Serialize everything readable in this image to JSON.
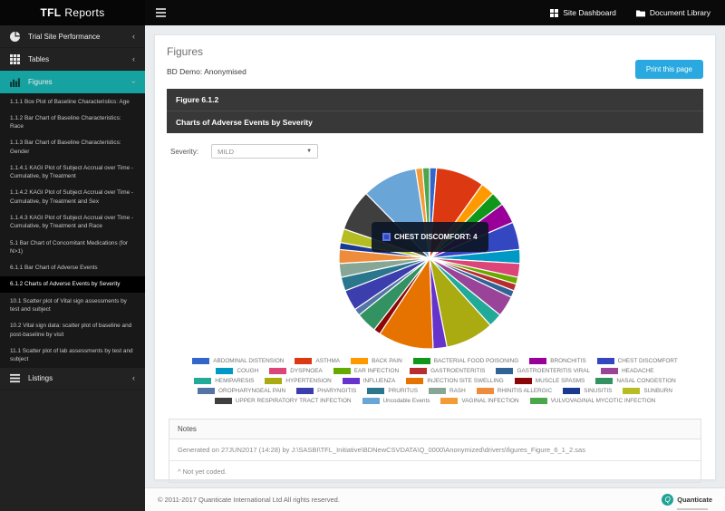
{
  "app": {
    "brand_bold": "TFL",
    "brand_rest": "Reports"
  },
  "topbar": {
    "links": [
      {
        "label": "Site Dashboard",
        "icon": "dashboard-grid-icon"
      },
      {
        "label": "Document Library",
        "icon": "folder-icon"
      }
    ]
  },
  "sidebar": {
    "sections": [
      {
        "label": "Trial Site Performance",
        "icon": "pie-chart-icon",
        "state": "collapsed"
      },
      {
        "label": "Tables",
        "icon": "table-grid-icon",
        "state": "collapsed"
      },
      {
        "label": "Figures",
        "icon": "bar-chart-icon",
        "state": "expanded"
      }
    ],
    "figures_items": [
      {
        "label": "1.1.1 Box Plot of Baseline Characteristics: Age",
        "active": false
      },
      {
        "label": "1.1.2 Bar Chart of Baseline Characteristics: Race",
        "active": false
      },
      {
        "label": "1.1.3 Bar Chart of Baseline Characteristics: Gender",
        "active": false
      },
      {
        "label": "1.1.4.1 KAGI Plot of Subject Accrual over Time - Cumulative, by Treatment",
        "active": false
      },
      {
        "label": "1.1.4.2 KAGI Plot of Subject Accrual over Time - Cumulative, by Treatment and Sex",
        "active": false
      },
      {
        "label": "1.1.4.3 KAGI Plot of Subject Accrual over Time - Cumulative, by Treatment and Race",
        "active": false
      },
      {
        "label": "5.1 Bar Chart of Concomitant Medications (for N>1)",
        "active": false
      },
      {
        "label": "6.1.1 Bar Chart of Adverse Events",
        "active": false
      },
      {
        "label": "6.1.2 Charts of Adverse Events by Severity",
        "active": true
      },
      {
        "label": "10.1 Scatter plot of Vital sign assessments by test and subject",
        "active": false
      },
      {
        "label": "10.2 Vital sign data: scatter plot of baseline and post-baseline by visit",
        "active": false
      },
      {
        "label": "11.1 Scatter plot of lab assessments by test and subject",
        "active": false
      }
    ],
    "listings": {
      "label": "Listings",
      "icon": "list-icon",
      "state": "collapsed"
    }
  },
  "main": {
    "page_title": "Figures",
    "subtitle": "BD Demo: Anonymised",
    "print_button": "Print this page",
    "panel": {
      "title": "Figure 6.1.2",
      "subtitle": "Charts of Adverse Events by Severity"
    },
    "severity": {
      "label": "Severity:",
      "value": "MILD"
    },
    "tooltip": {
      "display": "CHEST DISCOMFORT: 4",
      "color": "#3348c0"
    },
    "notes": {
      "header": "Notes",
      "rows": [
        "Generated on 27JUN2017 (14:28) by J:\\SASBI\\TFL_Initiative\\BDNewCSVDATA\\Q_0000\\Anonymized\\drivers\\figures_Figure_6_1_2.sas",
        "^ Not yet coded."
      ]
    }
  },
  "chart_data": {
    "type": "pie",
    "title": "Charts of Adverse Events by Severity (MILD)",
    "legend_position": "bottom",
    "labeled_value": {
      "name": "CHEST DISCOMFORT",
      "value": 4
    },
    "values_estimated_from_slice_angles": true,
    "series": [
      {
        "name": "ABDOMINAL DISTENSION",
        "value": 1,
        "color": "#3366cc"
      },
      {
        "name": "ASTHMA",
        "value": 7,
        "color": "#dc3912"
      },
      {
        "name": "BACK PAIN",
        "value": 2,
        "color": "#ff9900"
      },
      {
        "name": "BACTERIAL FOOD POISONING",
        "value": 2,
        "color": "#109618"
      },
      {
        "name": "BRONCHITIS",
        "value": 3,
        "color": "#990099"
      },
      {
        "name": "CHEST DISCOMFORT",
        "value": 4,
        "color": "#3348c0"
      },
      {
        "name": "COUGH",
        "value": 2,
        "color": "#0099c6"
      },
      {
        "name": "DYSPNOEA",
        "value": 2,
        "color": "#dd4477"
      },
      {
        "name": "EAR INFECTION",
        "value": 1,
        "color": "#66aa00"
      },
      {
        "name": "GASTROENTERITIS",
        "value": 1,
        "color": "#b82e2e"
      },
      {
        "name": "GASTROENTERITIS VIRAL",
        "value": 1,
        "color": "#316395"
      },
      {
        "name": "HEADACHE",
        "value": 3,
        "color": "#994499"
      },
      {
        "name": "HEMIPARESIS",
        "value": 2,
        "color": "#22aa99"
      },
      {
        "name": "HYPERTENSION",
        "value": 7,
        "color": "#aaaa11"
      },
      {
        "name": "INFLUENZA",
        "value": 2,
        "color": "#6633cc"
      },
      {
        "name": "INJECTION SITE SWELLING",
        "value": 8,
        "color": "#e67300"
      },
      {
        "name": "MUSCLE SPASMS",
        "value": 1,
        "color": "#8b0707"
      },
      {
        "name": "NASAL CONGESTION",
        "value": 3,
        "color": "#329262"
      },
      {
        "name": "OROPHARYNGEAL PAIN",
        "value": 1,
        "color": "#5574a6"
      },
      {
        "name": "PHARYNGITIS",
        "value": 3,
        "color": "#3b3eac"
      },
      {
        "name": "PRURITUS",
        "value": 2,
        "color": "#2a778d"
      },
      {
        "name": "RASH",
        "value": 2,
        "color": "#87a696"
      },
      {
        "name": "RHINITIS ALLERGIC",
        "value": 2,
        "color": "#ef8c3b"
      },
      {
        "name": "SINUSITIS",
        "value": 1,
        "color": "#1b3a8f"
      },
      {
        "name": "SUNBURN",
        "value": 2,
        "color": "#b6bd22"
      },
      {
        "name": "UPPER RESPIRATORY TRACT INFECTION",
        "value": 6,
        "color": "#3f3f3f"
      },
      {
        "name": "Uncodable Events",
        "value": 8,
        "color": "#6aa5d8"
      },
      {
        "name": "VAGINAL INFECTION",
        "value": 1,
        "color": "#f29b38"
      },
      {
        "name": "VULVOVAGINAL MYCOTIC INFECTION",
        "value": 1,
        "color": "#4ca64c"
      }
    ]
  },
  "footer": {
    "copyright": "© 2011-2017 Quanticate International Ltd All rights reserved.",
    "logo_text": "Quanticate"
  }
}
